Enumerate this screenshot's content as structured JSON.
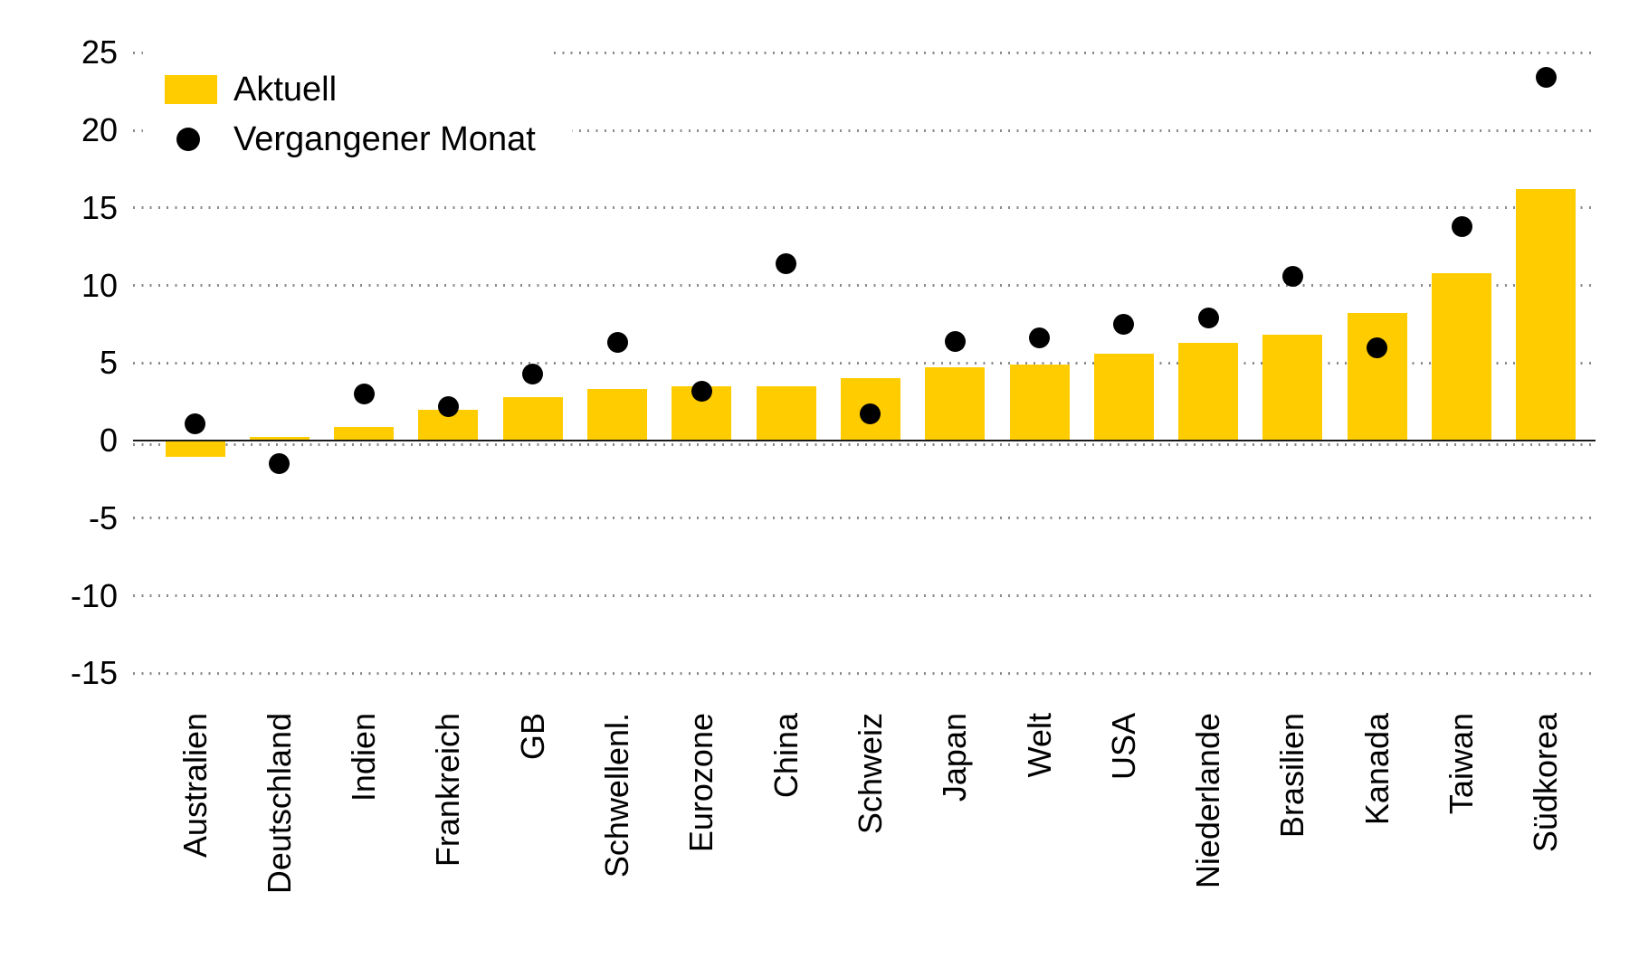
{
  "chart_data": {
    "type": "bar",
    "title": "",
    "xlabel": "",
    "ylabel": "",
    "categories": [
      "Australien",
      "Deutschland",
      "Indien",
      "Frankreich",
      "GB",
      "Schwellenl.",
      "Eurozone",
      "China",
      "Schweiz",
      "Japan",
      "Welt",
      "USA",
      "Niederlande",
      "Brasilien",
      "Kanada",
      "Taiwan",
      "Südkorea"
    ],
    "series": [
      {
        "name": "Aktuell",
        "type": "bar",
        "color": "#FFCC00",
        "values": [
          -1.0,
          0.25,
          0.9,
          2.0,
          2.8,
          3.3,
          3.5,
          3.5,
          4.0,
          4.7,
          4.9,
          5.6,
          6.3,
          6.8,
          8.2,
          10.8,
          16.2
        ]
      },
      {
        "name": "Vergangener Monat",
        "type": "scatter",
        "color": "#000000",
        "values": [
          1.1,
          -1.5,
          3.0,
          2.2,
          4.3,
          6.3,
          3.2,
          11.4,
          1.7,
          6.4,
          6.6,
          7.5,
          7.9,
          10.6,
          6.0,
          13.8,
          23.4
        ]
      }
    ],
    "yticks": [
      25,
      20,
      15,
      10,
      5,
      0,
      -5,
      -10,
      -15
    ],
    "ylim": [
      -15,
      25
    ],
    "grid": "horizontal-dotted",
    "legend_position": "top-left",
    "colors": {
      "bar": "#FFCC00",
      "dot": "#000000",
      "grid": "#8c8c8c",
      "axis": "#1a1a1a",
      "text": "#000000",
      "background": "#ffffff"
    }
  }
}
